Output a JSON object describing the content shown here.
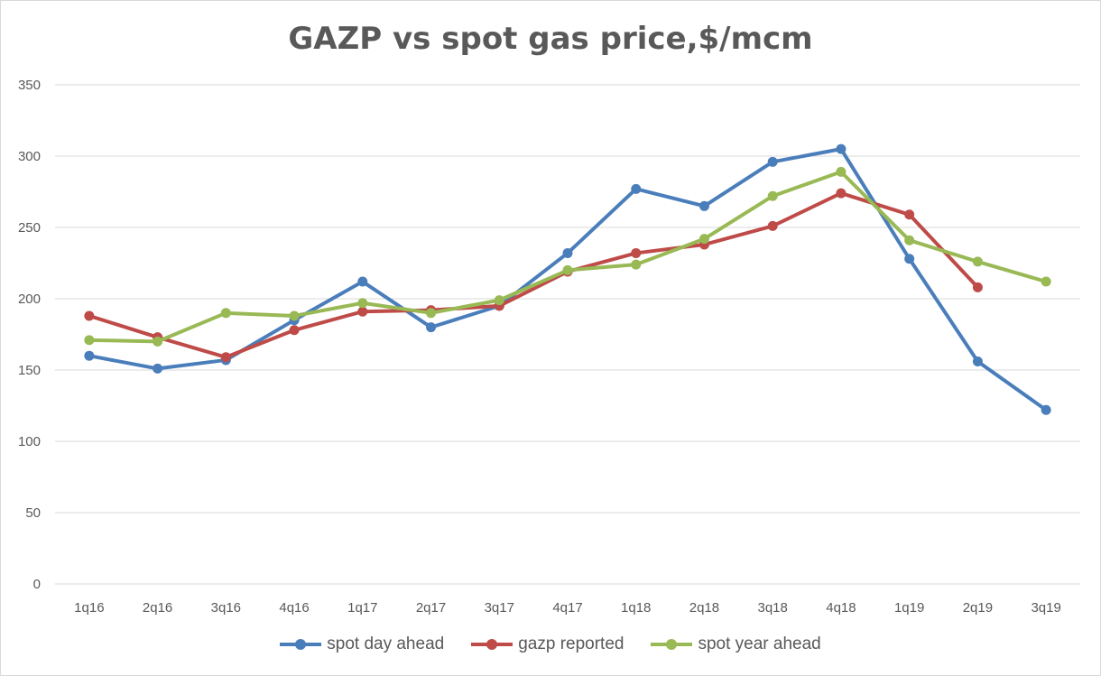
{
  "chart_data": {
    "type": "line",
    "title": "GAZP vs spot gas price,$/mcm",
    "xlabel": "",
    "ylabel": "",
    "ylim": [
      0,
      350
    ],
    "yticks": [
      0,
      50,
      100,
      150,
      200,
      250,
      300,
      350
    ],
    "grid": true,
    "legend_position": "bottom",
    "categories": [
      "1q16",
      "2q16",
      "3q16",
      "4q16",
      "1q17",
      "2q17",
      "3q17",
      "4q17",
      "1q18",
      "2q18",
      "3q18",
      "4q18",
      "1q19",
      "2q19",
      "3q19"
    ],
    "series": [
      {
        "name": "spot day ahead",
        "color": "#4a7ebb",
        "values": [
          160,
          151,
          157,
          185,
          212,
          180,
          195,
          232,
          277,
          265,
          296,
          305,
          228,
          156,
          122
        ]
      },
      {
        "name": "gazp reported",
        "color": "#be4b48",
        "values": [
          188,
          173,
          159,
          178,
          191,
          192,
          195,
          219,
          232,
          238,
          251,
          274,
          259,
          208,
          null
        ]
      },
      {
        "name": "spot year ahead",
        "color": "#98b954",
        "values": [
          171,
          170,
          190,
          188,
          197,
          190,
          199,
          220,
          224,
          242,
          272,
          289,
          241,
          226,
          212
        ]
      }
    ]
  }
}
